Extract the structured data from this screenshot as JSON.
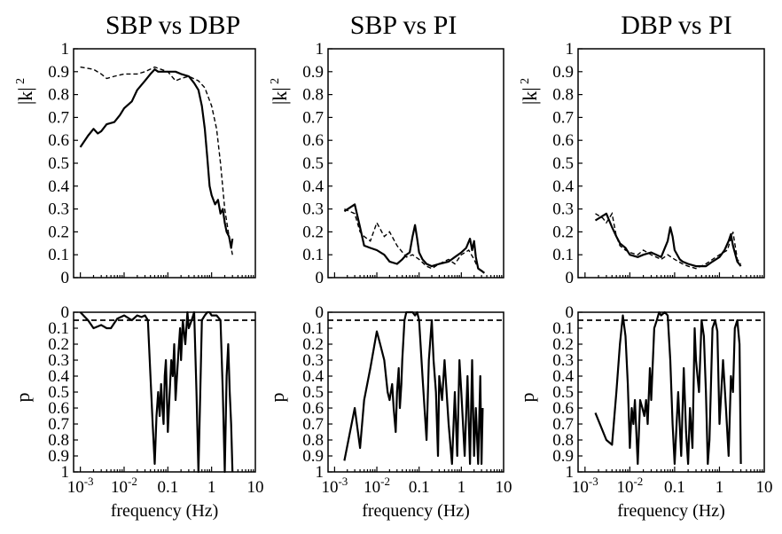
{
  "chart_data": [
    {
      "type": "line",
      "title": "SBP vs DBP",
      "ylabel": "|k|",
      "ylabel_sup": "2",
      "ylim": [
        0,
        1
      ],
      "xlim": [
        0.0007,
        10
      ],
      "xscale": "log",
      "yticks": [
        "0",
        "0.1",
        "0.2",
        "0.3",
        "0.4",
        "0.5",
        "0.6",
        "0.7",
        "0.8",
        "0.9",
        "1"
      ],
      "series": [
        {
          "style": "solid",
          "x": [
            0.001,
            0.0015,
            0.002,
            0.0025,
            0.003,
            0.004,
            0.006,
            0.008,
            0.01,
            0.015,
            0.02,
            0.03,
            0.04,
            0.05,
            0.06,
            0.07,
            0.1,
            0.15,
            0.2,
            0.3,
            0.4,
            0.5,
            0.6,
            0.7,
            0.8,
            0.9,
            1,
            1.2,
            1.4,
            1.6,
            1.8,
            2,
            2.2,
            2.5,
            2.8,
            3.0
          ],
          "y": [
            0.57,
            0.62,
            0.65,
            0.63,
            0.64,
            0.67,
            0.68,
            0.71,
            0.74,
            0.77,
            0.82,
            0.86,
            0.89,
            0.91,
            0.9,
            0.9,
            0.9,
            0.9,
            0.89,
            0.88,
            0.85,
            0.82,
            0.75,
            0.65,
            0.52,
            0.4,
            0.36,
            0.32,
            0.34,
            0.28,
            0.3,
            0.24,
            0.2,
            0.18,
            0.13,
            0.17
          ]
        },
        {
          "style": "dashed",
          "x": [
            0.001,
            0.002,
            0.003,
            0.004,
            0.006,
            0.01,
            0.02,
            0.03,
            0.05,
            0.07,
            0.1,
            0.15,
            0.2,
            0.3,
            0.5,
            0.7,
            1,
            1.3,
            1.6,
            2,
            2.5,
            3.0
          ],
          "y": [
            0.92,
            0.91,
            0.89,
            0.87,
            0.88,
            0.89,
            0.89,
            0.9,
            0.92,
            0.91,
            0.9,
            0.86,
            0.87,
            0.88,
            0.86,
            0.83,
            0.75,
            0.65,
            0.5,
            0.3,
            0.18,
            0.1
          ]
        }
      ]
    },
    {
      "type": "line",
      "title": "SBP vs PI",
      "ylabel": "|k|",
      "ylabel_sup": "2",
      "ylim": [
        0,
        1
      ],
      "xlim": [
        0.0007,
        10
      ],
      "xscale": "log",
      "yticks": [
        "0",
        "0.1",
        "0.2",
        "0.3",
        "0.4",
        "0.5",
        "0.6",
        "0.7",
        "0.8",
        "0.9",
        "1"
      ],
      "series": [
        {
          "style": "solid",
          "x": [
            0.0017,
            0.003,
            0.004,
            0.005,
            0.007,
            0.01,
            0.015,
            0.02,
            0.03,
            0.04,
            0.05,
            0.06,
            0.07,
            0.08,
            0.09,
            0.1,
            0.12,
            0.15,
            0.2,
            0.3,
            0.5,
            0.7,
            1,
            1.3,
            1.6,
            1.8,
            2,
            2.2,
            2.5,
            3,
            3.5
          ],
          "y": [
            0.29,
            0.32,
            0.22,
            0.14,
            0.13,
            0.12,
            0.1,
            0.07,
            0.06,
            0.08,
            0.1,
            0.11,
            0.18,
            0.23,
            0.17,
            0.11,
            0.08,
            0.06,
            0.05,
            0.06,
            0.07,
            0.09,
            0.11,
            0.13,
            0.17,
            0.12,
            0.16,
            0.09,
            0.04,
            0.03,
            0.02
          ]
        },
        {
          "style": "dashed",
          "x": [
            0.0017,
            0.003,
            0.004,
            0.005,
            0.007,
            0.01,
            0.015,
            0.02,
            0.03,
            0.05,
            0.07,
            0.1,
            0.15,
            0.2,
            0.3,
            0.5,
            0.7,
            1,
            1.5,
            2,
            2.5,
            3,
            3.5
          ],
          "y": [
            0.3,
            0.28,
            0.2,
            0.18,
            0.16,
            0.24,
            0.18,
            0.2,
            0.14,
            0.09,
            0.1,
            0.08,
            0.05,
            0.04,
            0.06,
            0.08,
            0.06,
            0.1,
            0.12,
            0.08,
            0.04,
            0.03,
            0.02
          ]
        }
      ]
    },
    {
      "type": "line",
      "title": "DBP vs PI",
      "ylabel": "|k|",
      "ylabel_sup": "2",
      "ylim": [
        0,
        1
      ],
      "xlim": [
        0.0007,
        10
      ],
      "xscale": "log",
      "yticks": [
        "0",
        "0.1",
        "0.2",
        "0.3",
        "0.4",
        "0.5",
        "0.6",
        "0.7",
        "0.8",
        "0.9",
        "1"
      ],
      "series": [
        {
          "style": "solid",
          "x": [
            0.0017,
            0.0025,
            0.003,
            0.004,
            0.005,
            0.006,
            0.008,
            0.01,
            0.015,
            0.02,
            0.03,
            0.05,
            0.07,
            0.08,
            0.09,
            0.1,
            0.13,
            0.15,
            0.2,
            0.3,
            0.5,
            0.7,
            1,
            1.3,
            1.6,
            1.8,
            2,
            2.5,
            3
          ],
          "y": [
            0.25,
            0.27,
            0.28,
            0.22,
            0.18,
            0.15,
            0.13,
            0.1,
            0.09,
            0.1,
            0.11,
            0.09,
            0.16,
            0.22,
            0.18,
            0.12,
            0.08,
            0.07,
            0.06,
            0.05,
            0.05,
            0.07,
            0.09,
            0.12,
            0.16,
            0.19,
            0.14,
            0.07,
            0.05
          ]
        },
        {
          "style": "dashed",
          "x": [
            0.0017,
            0.0025,
            0.003,
            0.004,
            0.005,
            0.006,
            0.008,
            0.01,
            0.015,
            0.02,
            0.03,
            0.05,
            0.07,
            0.1,
            0.15,
            0.2,
            0.3,
            0.5,
            0.7,
            1,
            1.5,
            2,
            2.5,
            3
          ],
          "y": [
            0.28,
            0.26,
            0.24,
            0.28,
            0.18,
            0.14,
            0.12,
            0.11,
            0.1,
            0.12,
            0.1,
            0.08,
            0.1,
            0.08,
            0.06,
            0.05,
            0.04,
            0.06,
            0.08,
            0.1,
            0.12,
            0.2,
            0.08,
            0.06
          ]
        }
      ]
    },
    {
      "type": "line",
      "ylabel": "p",
      "xlabel": "frequency (Hz)",
      "ylim": [
        1,
        0
      ],
      "xlim": [
        0.0007,
        10
      ],
      "xscale": "log",
      "threshold": 0.05,
      "yticks": [
        "0",
        "0.1",
        "0.2",
        "0.3",
        "0.4",
        "0.5",
        "0.6",
        "0.7",
        "0.8",
        "0.9",
        "1"
      ],
      "xticks": [
        {
          "base": "10",
          "exp": "-3",
          "v": 0.001
        },
        {
          "base": "10",
          "exp": "-2",
          "v": 0.01
        },
        {
          "base": "0.1",
          "v": 0.1
        },
        {
          "base": "1",
          "v": 1
        },
        {
          "base": "10",
          "v": 10
        }
      ],
      "series": [
        {
          "style": "solid",
          "x": [
            0.001,
            0.0015,
            0.002,
            0.003,
            0.004,
            0.005,
            0.007,
            0.01,
            0.015,
            0.02,
            0.025,
            0.03,
            0.035,
            0.04,
            0.045,
            0.05,
            0.055,
            0.06,
            0.065,
            0.07,
            0.075,
            0.08,
            0.085,
            0.09,
            0.1,
            0.11,
            0.12,
            0.13,
            0.14,
            0.15,
            0.17,
            0.19,
            0.2,
            0.22,
            0.25,
            0.28,
            0.3,
            0.35,
            0.4,
            0.45,
            0.5,
            0.55,
            0.6,
            0.7,
            0.8,
            0.9,
            1,
            1.3,
            1.6,
            1.8,
            2.0,
            2.2,
            2.4,
            2.6,
            2.8,
            3.0
          ],
          "y": [
            0.0,
            0.05,
            0.1,
            0.08,
            0.1,
            0.1,
            0.04,
            0.02,
            0.05,
            0.02,
            0.03,
            0.02,
            0.05,
            0.4,
            0.7,
            0.95,
            0.65,
            0.5,
            0.65,
            0.45,
            0.6,
            0.7,
            0.4,
            0.3,
            0.75,
            0.5,
            0.3,
            0.4,
            0.2,
            0.55,
            0.3,
            0.1,
            0.3,
            0.05,
            0.2,
            0.0,
            0.1,
            0.05,
            0.0,
            0.5,
            1.0,
            0.5,
            0.05,
            0.02,
            0.0,
            0.0,
            0.02,
            0.02,
            0.05,
            0.5,
            1.0,
            0.4,
            0.2,
            0.5,
            0.7,
            1.0
          ]
        }
      ]
    },
    {
      "type": "line",
      "ylabel": "p",
      "xlabel": "frequency (Hz)",
      "ylim": [
        1,
        0
      ],
      "xlim": [
        0.0007,
        10
      ],
      "xscale": "log",
      "threshold": 0.05,
      "yticks": [
        "0",
        "0.1",
        "0.2",
        "0.3",
        "0.4",
        "0.5",
        "0.6",
        "0.7",
        "0.8",
        "0.9",
        "1"
      ],
      "xticks": [
        {
          "base": "10",
          "exp": "-3",
          "v": 0.001
        },
        {
          "base": "10",
          "exp": "-2",
          "v": 0.01
        },
        {
          "base": "0.1",
          "v": 0.1
        },
        {
          "base": "1",
          "v": 1
        },
        {
          "base": "10",
          "v": 10
        }
      ],
      "series": [
        {
          "style": "solid",
          "x": [
            0.0017,
            0.003,
            0.004,
            0.005,
            0.007,
            0.01,
            0.012,
            0.015,
            0.018,
            0.02,
            0.023,
            0.025,
            0.028,
            0.03,
            0.033,
            0.035,
            0.038,
            0.04,
            0.045,
            0.05,
            0.06,
            0.07,
            0.08,
            0.09,
            0.1,
            0.12,
            0.15,
            0.17,
            0.2,
            0.22,
            0.25,
            0.28,
            0.3,
            0.35,
            0.4,
            0.5,
            0.6,
            0.7,
            0.8,
            0.9,
            1,
            1.2,
            1.4,
            1.6,
            1.8,
            2,
            2.2,
            2.5,
            2.8,
            3,
            3.2
          ],
          "y": [
            0.93,
            0.6,
            0.85,
            0.55,
            0.35,
            0.12,
            0.2,
            0.3,
            0.5,
            0.55,
            0.45,
            0.6,
            0.75,
            0.5,
            0.35,
            0.6,
            0.45,
            0.3,
            0.05,
            0.0,
            0.0,
            0.0,
            0.02,
            0.0,
            0.05,
            0.4,
            0.8,
            0.3,
            0.05,
            0.3,
            0.5,
            0.9,
            0.4,
            0.55,
            0.3,
            0.7,
            0.95,
            0.5,
            0.9,
            0.3,
            0.5,
            0.9,
            0.4,
            0.95,
            0.3,
            0.9,
            0.6,
            0.95,
            0.4,
            0.95,
            0.6
          ]
        }
      ]
    },
    {
      "type": "line",
      "ylabel": "p",
      "xlabel": "frequency (Hz)",
      "ylim": [
        1,
        0
      ],
      "xlim": [
        0.0007,
        10
      ],
      "xscale": "log",
      "threshold": 0.05,
      "yticks": [
        "0",
        "0.1",
        "0.2",
        "0.3",
        "0.4",
        "0.5",
        "0.6",
        "0.7",
        "0.8",
        "0.9",
        "1"
      ],
      "xticks": [
        {
          "base": "10",
          "exp": "-3",
          "v": 0.001
        },
        {
          "base": "10",
          "exp": "-2",
          "v": 0.01
        },
        {
          "base": "0.1",
          "v": 0.1
        },
        {
          "base": "1",
          "v": 1
        },
        {
          "base": "10",
          "v": 10
        }
      ],
      "series": [
        {
          "style": "solid",
          "x": [
            0.0017,
            0.003,
            0.004,
            0.005,
            0.006,
            0.007,
            0.008,
            0.009,
            0.01,
            0.011,
            0.012,
            0.013,
            0.015,
            0.017,
            0.019,
            0.021,
            0.023,
            0.025,
            0.028,
            0.03,
            0.035,
            0.04,
            0.045,
            0.05,
            0.06,
            0.07,
            0.08,
            0.09,
            0.1,
            0.12,
            0.14,
            0.16,
            0.18,
            0.2,
            0.22,
            0.25,
            0.28,
            0.3,
            0.35,
            0.4,
            0.45,
            0.5,
            0.55,
            0.6,
            0.7,
            0.8,
            0.9,
            1,
            1.2,
            1.4,
            1.6,
            1.8,
            2,
            2.2,
            2.5,
            2.8,
            3.0
          ],
          "y": [
            0.63,
            0.8,
            0.83,
            0.5,
            0.2,
            0.02,
            0.15,
            0.45,
            0.85,
            0.6,
            0.7,
            0.55,
            0.95,
            0.55,
            0.6,
            0.65,
            0.55,
            0.7,
            0.35,
            0.55,
            0.1,
            0.05,
            0.0,
            0.02,
            0.0,
            0.02,
            0.3,
            0.7,
            0.95,
            0.5,
            0.9,
            0.35,
            0.75,
            0.95,
            0.6,
            0.85,
            0.1,
            0.3,
            0.5,
            0.05,
            0.15,
            0.5,
            0.95,
            0.8,
            0.1,
            0.05,
            0.12,
            0.7,
            0.3,
            0.6,
            0.9,
            0.4,
            0.5,
            0.1,
            0.05,
            0.2,
            0.95
          ]
        }
      ]
    }
  ]
}
